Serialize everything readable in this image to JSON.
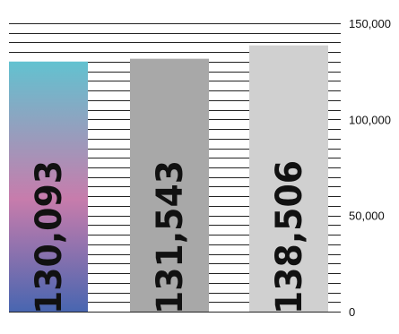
{
  "chart_data": {
    "type": "bar",
    "categories": [
      "",
      "",
      ""
    ],
    "values": [
      130093,
      131543,
      138506
    ],
    "value_labels": [
      "130,093",
      "131,543",
      "138,506"
    ],
    "ylim": [
      0,
      150000
    ],
    "y_ticks": [
      {
        "value": 0,
        "label": "0"
      },
      {
        "value": 50000,
        "label": "50,000"
      },
      {
        "value": 100000,
        "label": "100,000"
      },
      {
        "value": 150000,
        "label": "150,000"
      }
    ],
    "minor_step": 5000,
    "grid": true,
    "bar_fills": [
      "gradient-teal-pink-blue",
      "#a8a8a8",
      "#d0d0d0"
    ],
    "gradient_colors": [
      "#62c2d0",
      "#c77cac",
      "#4966b0"
    ],
    "colors": {
      "grid": "#222222",
      "text": "#111111"
    }
  }
}
